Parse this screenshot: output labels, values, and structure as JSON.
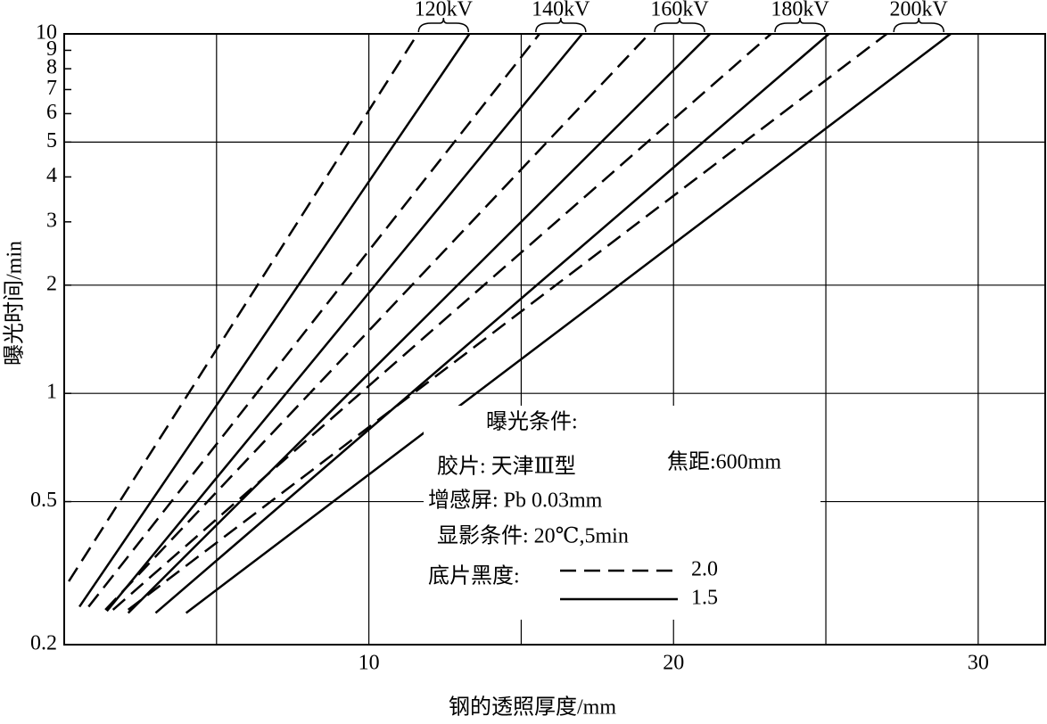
{
  "chart_data": {
    "type": "line",
    "log_y": true,
    "xlabel": "钢的透照厚度/mm",
    "ylabel": "曝光时间/min",
    "xlim": [
      0,
      32.2
    ],
    "xticks": [
      10,
      20,
      30
    ],
    "xgrid": [
      5,
      10,
      15,
      20,
      25,
      30
    ],
    "ylim": [
      0.2,
      10
    ],
    "yticks": [
      0.2,
      0.5,
      1,
      2,
      3,
      4,
      5,
      6,
      7,
      8,
      9,
      10
    ],
    "ygrid": [
      0.5,
      1,
      2,
      5,
      10
    ],
    "color": "#000000",
    "series": [
      {
        "name": "120kV",
        "dashed": {
          "x": [
            0.15,
            11.6
          ],
          "y": [
            0.3,
            10
          ]
        },
        "solid": {
          "x": [
            0.5,
            13.3
          ],
          "y": [
            0.255,
            10
          ]
        }
      },
      {
        "name": "140kV",
        "dashed": {
          "x": [
            0.8,
            15.6
          ],
          "y": [
            0.255,
            10
          ]
        },
        "solid": {
          "x": [
            1.4,
            17.0
          ],
          "y": [
            0.248,
            10
          ]
        }
      },
      {
        "name": "160kV",
        "dashed": {
          "x": [
            1.35,
            19.2
          ],
          "y": [
            0.25,
            10
          ]
        },
        "solid": {
          "x": [
            2.1,
            21.2
          ],
          "y": [
            0.245,
            10
          ]
        }
      },
      {
        "name": "180kV",
        "dashed": {
          "x": [
            1.6,
            23.2
          ],
          "y": [
            0.25,
            10
          ]
        },
        "solid": {
          "x": [
            3.0,
            25.1
          ],
          "y": [
            0.245,
            10
          ]
        }
      },
      {
        "name": "200kV",
        "dashed": {
          "x": [
            2.1,
            27.0
          ],
          "y": [
            0.25,
            10
          ]
        },
        "solid": {
          "x": [
            4.0,
            29.1
          ],
          "y": [
            0.245,
            10
          ]
        }
      }
    ],
    "legend": {
      "title": "底片黑度:",
      "dashed": "2.0",
      "solid": "1.5"
    },
    "conditions": {
      "title": "曝光条件:",
      "film": "胶片: 天津Ⅲ型",
      "focal": "焦距:600mm",
      "screen": "增感屏: Pb 0.03mm",
      "develop": "显影条件: 20℃,5min"
    }
  }
}
